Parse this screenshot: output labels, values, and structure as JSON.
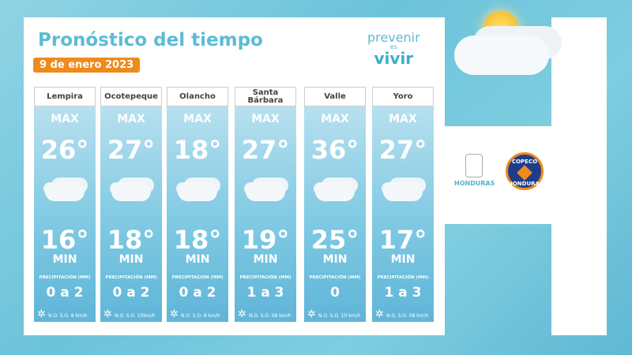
{
  "title": "Pronóstico del tiempo",
  "date": "9 de enero 2023",
  "brand": {
    "line1": "prevenir",
    "line2": "es",
    "line3": "vivir"
  },
  "logos": {
    "honduras": "HONDURAS",
    "copeco": "COPECO",
    "copeco_sub": "HONDURAS"
  },
  "labels": {
    "max": "MAX",
    "min": "MIN",
    "precip": "PRECIPITACIÓN (MM)"
  },
  "cities": [
    {
      "name": "Lempira",
      "max": "26°",
      "min": "16°",
      "precip": "0 a 2",
      "wind": "N.O. S.O. 8 km/h"
    },
    {
      "name": "Ocotepeque",
      "max": "27°",
      "min": "18°",
      "precip": "0 a 2",
      "wind": "N.O. S.O. 10km/h"
    },
    {
      "name": "Olancho",
      "max": "18°",
      "min": "18°",
      "precip": "0 a 2",
      "wind": "N.O. S.O. 8 km/h"
    },
    {
      "name": "Santa Bárbara",
      "max": "27°",
      "min": "19°",
      "precip": "1 a 3",
      "wind": "N.O. S.O. 08 km/h"
    },
    {
      "name": "Valle",
      "max": "36°",
      "min": "25°",
      "precip": "0",
      "wind": "N.O. S.O. 10 km/h"
    },
    {
      "name": "Yoro",
      "max": "27°",
      "min": "17°",
      "precip": "1 a 3",
      "wind": "N.O. S.O. 08 km/h"
    }
  ],
  "colors": {
    "accent": "#5bbcd6",
    "date_badge": "#ef8a1c"
  }
}
